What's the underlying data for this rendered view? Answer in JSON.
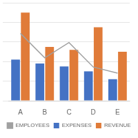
{
  "chart_data": {
    "type": "bar",
    "categories": [
      "A",
      "B",
      "C",
      "D",
      "E"
    ],
    "series": [
      {
        "name": "EXPENSES",
        "color": "#4472C4",
        "values": [
          42,
          38,
          35,
          30,
          22
        ]
      },
      {
        "name": "REVENUE",
        "color": "#E07B39",
        "values": [
          90,
          55,
          52,
          75,
          50
        ]
      },
      {
        "name": "EMPLOYEES",
        "color": "#A0A0A0",
        "values": [
          110,
          70,
          95,
          55,
          45
        ],
        "type": "line",
        "axis": "y2"
      }
    ],
    "ylim": [
      0,
      100
    ],
    "yticks": [
      0,
      20,
      40,
      60,
      80,
      100
    ],
    "y2lim": [
      0,
      160
    ],
    "grid": true,
    "legend": "bottom",
    "tick_labels": "x"
  }
}
